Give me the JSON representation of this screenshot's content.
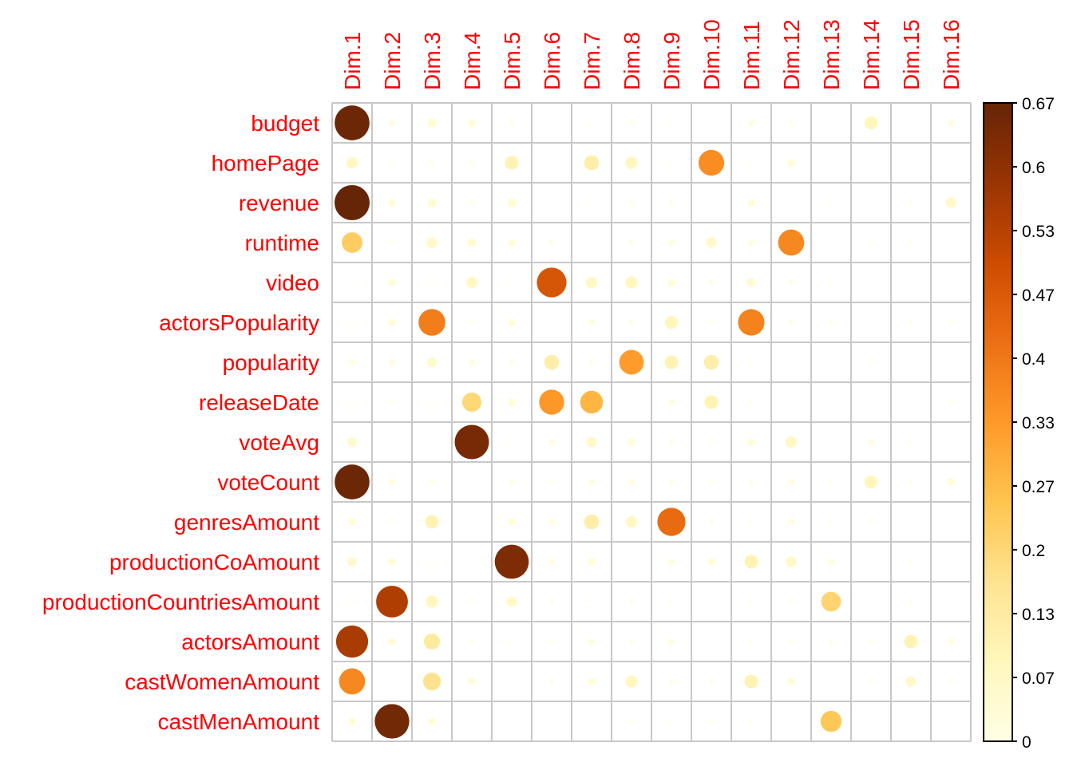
{
  "chart_data": {
    "type": "heatmap",
    "style": "corrplot-circle",
    "title": "",
    "xlabel": "",
    "ylabel": "",
    "columns": [
      "Dim.1",
      "Dim.2",
      "Dim.3",
      "Dim.4",
      "Dim.5",
      "Dim.6",
      "Dim.7",
      "Dim.8",
      "Dim.9",
      "Dim.10",
      "Dim.11",
      "Dim.12",
      "Dim.13",
      "Dim.14",
      "Dim.15",
      "Dim.16"
    ],
    "rows": [
      "budget",
      "homePage",
      "revenue",
      "runtime",
      "video",
      "actorsPopularity",
      "popularity",
      "releaseDate",
      "voteAvg",
      "voteCount",
      "genresAmount",
      "productionCoAmount",
      "productionCountriesAmount",
      "actorsAmount",
      "castWomenAmount",
      "castMenAmount"
    ],
    "values": [
      [
        0.66,
        0.02,
        0.04,
        0.03,
        0.01,
        0,
        0.005,
        0.01,
        0.005,
        0,
        0.02,
        0.01,
        0,
        0.09,
        0,
        0.02
      ],
      [
        0.07,
        0.005,
        0.01,
        0.01,
        0.1,
        0,
        0.12,
        0.08,
        0.005,
        0.36,
        0.005,
        0.03,
        0,
        0,
        0,
        0
      ],
      [
        0.67,
        0.03,
        0.04,
        0.01,
        0.04,
        0,
        0.005,
        0.01,
        0.01,
        0,
        0.03,
        0,
        0.005,
        0,
        0.01,
        0.06
      ],
      [
        0.23,
        0.005,
        0.06,
        0.04,
        0.03,
        0.01,
        0,
        0.01,
        0.02,
        0.06,
        0.02,
        0.37,
        0,
        0.005,
        0.005,
        0
      ],
      [
        0.005,
        0.03,
        0.005,
        0.07,
        0.005,
        0.48,
        0.07,
        0.08,
        0.03,
        0.01,
        0.04,
        0.01,
        0.005,
        0,
        0,
        0
      ],
      [
        0.005,
        0.03,
        0.39,
        0.005,
        0.03,
        0,
        0.02,
        0.01,
        0.09,
        0.005,
        0.38,
        0.01,
        0.01,
        0,
        0.01,
        0.005
      ],
      [
        0.02,
        0.02,
        0.05,
        0.02,
        0.01,
        0.12,
        0.01,
        0.33,
        0.1,
        0.12,
        0.005,
        0,
        0,
        0.005,
        0,
        0
      ],
      [
        0.005,
        0.005,
        0.005,
        0.2,
        0.03,
        0.34,
        0.28,
        0,
        0.02,
        0.1,
        0.005,
        0,
        0,
        0,
        0,
        0.005
      ],
      [
        0.05,
        0,
        0,
        0.64,
        0.005,
        0.02,
        0.06,
        0.03,
        0.01,
        0.005,
        0.03,
        0.07,
        0,
        0.02,
        0.005,
        0
      ],
      [
        0.66,
        0.02,
        0.01,
        0,
        0.01,
        0.005,
        0.02,
        0.02,
        0.01,
        0.005,
        0.01,
        0.02,
        0.005,
        0.09,
        0.01,
        0.03
      ],
      [
        0.03,
        0.005,
        0.1,
        0,
        0.03,
        0.02,
        0.12,
        0.07,
        0.43,
        0.01,
        0.005,
        0.02,
        0.005,
        0.005,
        0,
        0
      ],
      [
        0.05,
        0.03,
        0.005,
        0,
        0.63,
        0.02,
        0.03,
        0,
        0.02,
        0.03,
        0.1,
        0.06,
        0.02,
        0,
        0.005,
        0
      ],
      [
        0.005,
        0.55,
        0.08,
        0.005,
        0.06,
        0.01,
        0.005,
        0.01,
        0.005,
        0,
        0.005,
        0.005,
        0.21,
        0,
        0.01,
        0
      ],
      [
        0.56,
        0.03,
        0.14,
        0.01,
        0.005,
        0.005,
        0.02,
        0.01,
        0.02,
        0,
        0.005,
        0.005,
        0.01,
        0.005,
        0.1,
        0.02
      ],
      [
        0.37,
        0,
        0.17,
        0.03,
        0,
        0.01,
        0.03,
        0.08,
        0.01,
        0.01,
        0.1,
        0.03,
        0,
        0.005,
        0.06,
        0.005
      ],
      [
        0.03,
        0.65,
        0.03,
        0,
        0,
        0,
        0,
        0.005,
        0.005,
        0.005,
        0.005,
        0,
        0.24,
        0,
        0,
        0
      ]
    ],
    "colorbar": {
      "min": 0,
      "max": 0.67,
      "ticks": [
        "0.67",
        "0.6",
        "0.53",
        "0.47",
        "0.4",
        "0.33",
        "0.27",
        "0.2",
        "0.13",
        "0.07",
        "0"
      ],
      "colors": [
        "#FFFFE5",
        "#FFF7BC",
        "#FEE391",
        "#FEC44F",
        "#FE9929",
        "#EC7014",
        "#CC4C02",
        "#993404",
        "#662506"
      ]
    },
    "grid": true,
    "legend": "right"
  }
}
